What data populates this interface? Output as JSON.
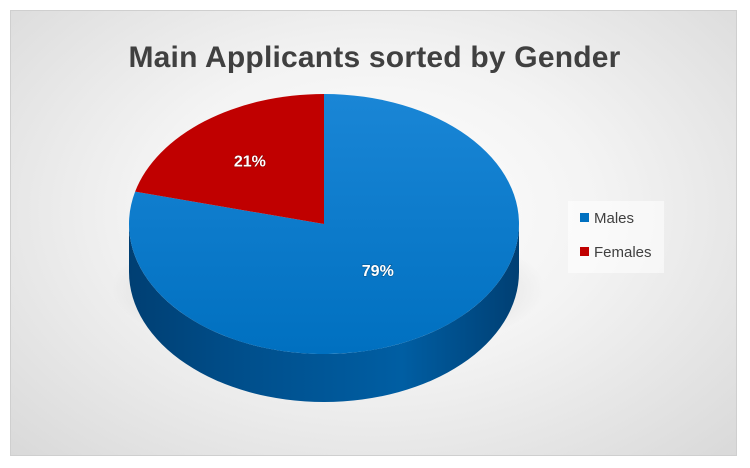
{
  "chart_data": {
    "type": "pie",
    "title": "Main Applicants sorted by Gender",
    "categories": [
      "Males",
      "Females"
    ],
    "values": [
      79,
      21
    ],
    "labels": [
      "79%",
      "21%"
    ],
    "colors": [
      "#0070c0",
      "#c00000"
    ],
    "side_colors": [
      "#004f8c",
      "#8a0000"
    ],
    "legend_position": "right",
    "style": "3d"
  }
}
